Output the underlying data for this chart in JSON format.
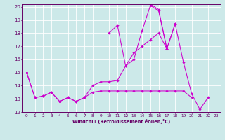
{
  "xlabel": "Windchill (Refroidissement éolien,°C)",
  "x": [
    0,
    1,
    2,
    3,
    4,
    5,
    6,
    7,
    8,
    9,
    10,
    11,
    12,
    13,
    14,
    15,
    16,
    17,
    18,
    19,
    20,
    21,
    22,
    23
  ],
  "line1": [
    15.0,
    13.1,
    13.2,
    13.5,
    12.8,
    13.1,
    12.8,
    13.1,
    14.0,
    14.3,
    14.3,
    14.4,
    15.5,
    16.5,
    17.0,
    17.5,
    18.0,
    16.8,
    18.7,
    15.8,
    13.4,
    12.2,
    13.1,
    null
  ],
  "line2": [
    null,
    null,
    null,
    null,
    null,
    null,
    null,
    null,
    null,
    null,
    18.0,
    18.6,
    15.5,
    16.0,
    18.2,
    20.1,
    19.7,
    16.8,
    null,
    null,
    null,
    null,
    null,
    null
  ],
  "line3": [
    null,
    null,
    null,
    null,
    null,
    null,
    null,
    null,
    null,
    null,
    null,
    null,
    null,
    null,
    null,
    20.2,
    19.8,
    16.8,
    18.7,
    null,
    null,
    null,
    null,
    null
  ],
  "line4": [
    15.0,
    13.1,
    13.2,
    13.5,
    12.8,
    13.1,
    12.8,
    13.1,
    13.5,
    13.6,
    13.6,
    13.6,
    13.6,
    13.6,
    13.6,
    13.6,
    13.6,
    13.6,
    13.6,
    13.6,
    13.1,
    null,
    null,
    null
  ],
  "ylim_min": 12,
  "ylim_max": 20,
  "xlim_min": 0,
  "xlim_max": 23,
  "bg_color": "#cce9e9",
  "line_color": "#cc00cc",
  "grid_color": "#ffffff",
  "tick_color": "#660066",
  "label_color": "#660066",
  "spine_color": "#660066"
}
